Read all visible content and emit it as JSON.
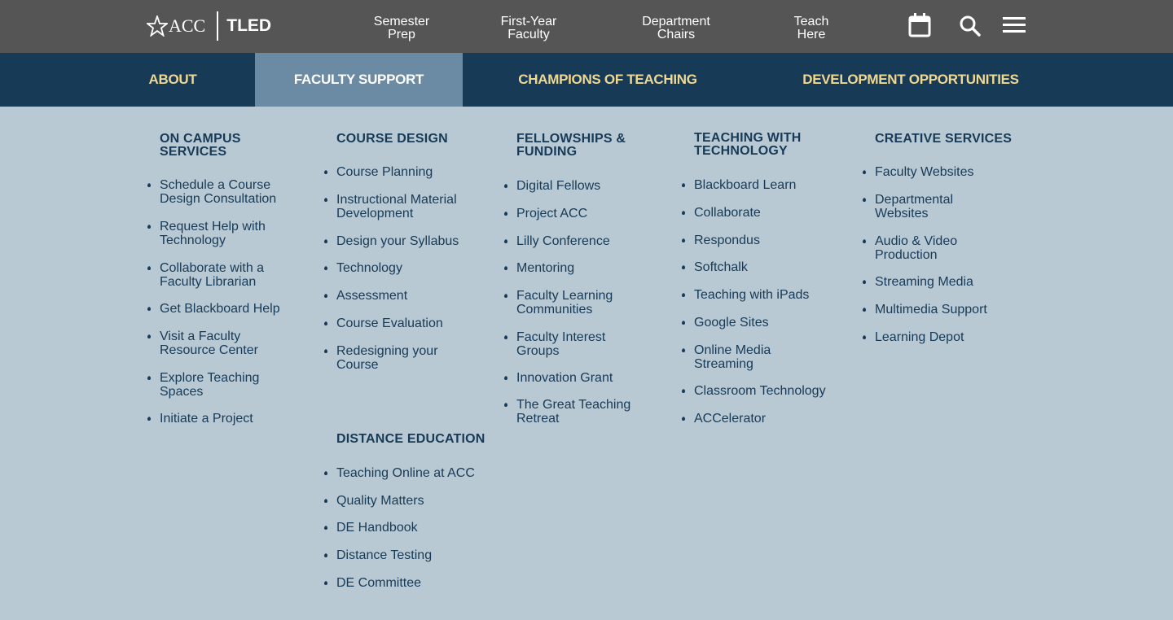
{
  "header": {
    "logo_acc": "ACC",
    "logo_tled": "TLED",
    "links": [
      {
        "line1": "Semester",
        "line2": "Prep"
      },
      {
        "line1": "First-Year",
        "line2": "Faculty"
      },
      {
        "line1": "Department",
        "line2": "Chairs"
      },
      {
        "line1": "Teach",
        "line2": "Here"
      }
    ],
    "icons": [
      "calendar-icon",
      "search-icon",
      "menu-icon"
    ]
  },
  "nav": {
    "items": [
      "ABOUT",
      "FACULTY SUPPORT",
      "CHAMPIONS OF TEACHING",
      "DEVELOPMENT OPPORTUNITIES"
    ],
    "active": "FACULTY SUPPORT"
  },
  "colors": {
    "topbar": "#555555",
    "navbar": "#173a57",
    "nav_active": "#6b8aa3",
    "nav_text": "#f0d890",
    "menu_bg": "#b8c9d4",
    "menu_text": "#173a57"
  },
  "menu": {
    "on_campus": {
      "title_line1": "ON CAMPUS",
      "title_line2": "SERVICES",
      "items": [
        {
          "l1": "Schedule a Course",
          "l2": "Design Consultation"
        },
        {
          "l1": "Request Help with",
          "l2": "Technology"
        },
        {
          "l1": "Collaborate with a",
          "l2": "Faculty Librarian"
        },
        {
          "l1": "Get Blackboard Help",
          "l2": ""
        },
        {
          "l1": "Visit a Faculty",
          "l2": "Resource Center"
        },
        {
          "l1": "Explore Teaching",
          "l2": "Spaces"
        },
        {
          "l1": "Initiate a Project",
          "l2": ""
        }
      ]
    },
    "course_design": {
      "title": "COURSE DESIGN",
      "items": [
        {
          "l1": "Course Planning",
          "l2": ""
        },
        {
          "l1": "Instructional Material",
          "l2": "Development"
        },
        {
          "l1": "Design your Syllabus",
          "l2": ""
        },
        {
          "l1": "Technology",
          "l2": ""
        },
        {
          "l1": "Assessment",
          "l2": ""
        },
        {
          "l1": "Course Evaluation",
          "l2": ""
        },
        {
          "l1": "Redesigning your",
          "l2": "Course"
        }
      ]
    },
    "distance_education": {
      "title": "DISTANCE EDUCATION",
      "items": [
        {
          "l1": "Teaching Online at ACC",
          "l2": ""
        },
        {
          "l1": "Quality Matters",
          "l2": ""
        },
        {
          "l1": "DE Handbook",
          "l2": ""
        },
        {
          "l1": "Distance Testing",
          "l2": ""
        },
        {
          "l1": "DE Committee",
          "l2": ""
        }
      ]
    },
    "fellowships": {
      "title_line1": "FELLOWSHIPS &",
      "title_line2": "FUNDING",
      "items": [
        {
          "l1": "Digital Fellows",
          "l2": ""
        },
        {
          "l1": "Project ACC",
          "l2": ""
        },
        {
          "l1": "Lilly Conference",
          "l2": ""
        },
        {
          "l1": "Mentoring",
          "l2": ""
        },
        {
          "l1": "Faculty Learning",
          "l2": "Communities"
        },
        {
          "l1": "Faculty Interest",
          "l2": "Groups"
        },
        {
          "l1": "Innovation Grant",
          "l2": ""
        },
        {
          "l1": "The Great Teaching",
          "l2": "Retreat"
        }
      ]
    },
    "teaching_tech": {
      "title_line1": "TEACHING WITH",
      "title_line2": "TECHNOLOGY",
      "items": [
        {
          "l1": "Blackboard Learn",
          "l2": ""
        },
        {
          "l1": "Collaborate",
          "l2": ""
        },
        {
          "l1": "Respondus",
          "l2": ""
        },
        {
          "l1": "Softchalk",
          "l2": ""
        },
        {
          "l1": "Teaching with iPads",
          "l2": ""
        },
        {
          "l1": "Google Sites",
          "l2": ""
        },
        {
          "l1": "Online Media",
          "l2": "Streaming"
        },
        {
          "l1": "Classroom Technology",
          "l2": ""
        },
        {
          "l1": "ACCelerator",
          "l2": ""
        }
      ]
    },
    "creative": {
      "title": "CREATIVE SERVICES",
      "items": [
        {
          "l1": "Faculty Websites",
          "l2": ""
        },
        {
          "l1": "Departmental",
          "l2": "Websites"
        },
        {
          "l1": "Audio & Video",
          "l2": "Production"
        },
        {
          "l1": "Streaming Media",
          "l2": ""
        },
        {
          "l1": "Multimedia Support",
          "l2": ""
        },
        {
          "l1": "Learning Depot",
          "l2": ""
        }
      ]
    }
  }
}
